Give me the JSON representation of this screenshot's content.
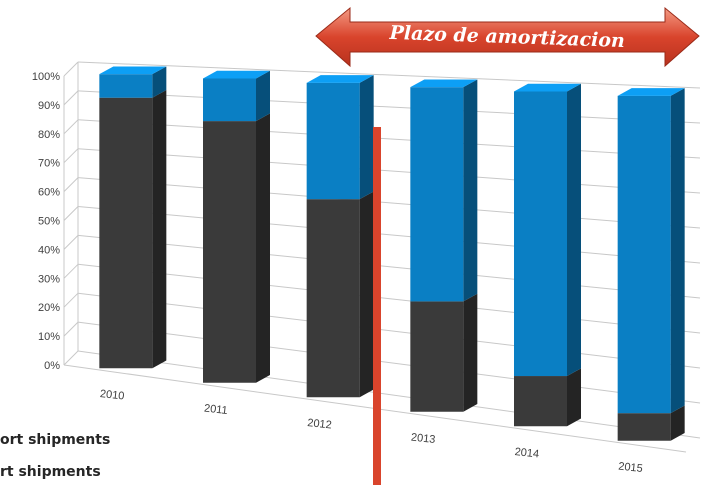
{
  "chart_data": {
    "type": "bar",
    "stacked": true,
    "percent": true,
    "categories": [
      "2010",
      "2011",
      "2012",
      "2013",
      "2014",
      "2015"
    ],
    "series": [
      {
        "name": "ort shipments",
        "color": "#3a3a3a",
        "values": [
          92,
          86,
          63,
          34,
          15,
          8
        ]
      },
      {
        "name": "rt shipments",
        "color": "#0a7fc4",
        "values": [
          8,
          14,
          37,
          66,
          85,
          92
        ]
      }
    ],
    "ylim": [
      0,
      100
    ],
    "yticks": [
      "0%",
      "10%",
      "20%",
      "30%",
      "40%",
      "50%",
      "60%",
      "70%",
      "80%",
      "90%",
      "100%"
    ],
    "grid": true,
    "legend_position": "bottom-left",
    "annotation": {
      "banner_text": "Plazo de amortizacion",
      "banner_color": "#d9442c",
      "divider_color": "#d9442c"
    }
  }
}
